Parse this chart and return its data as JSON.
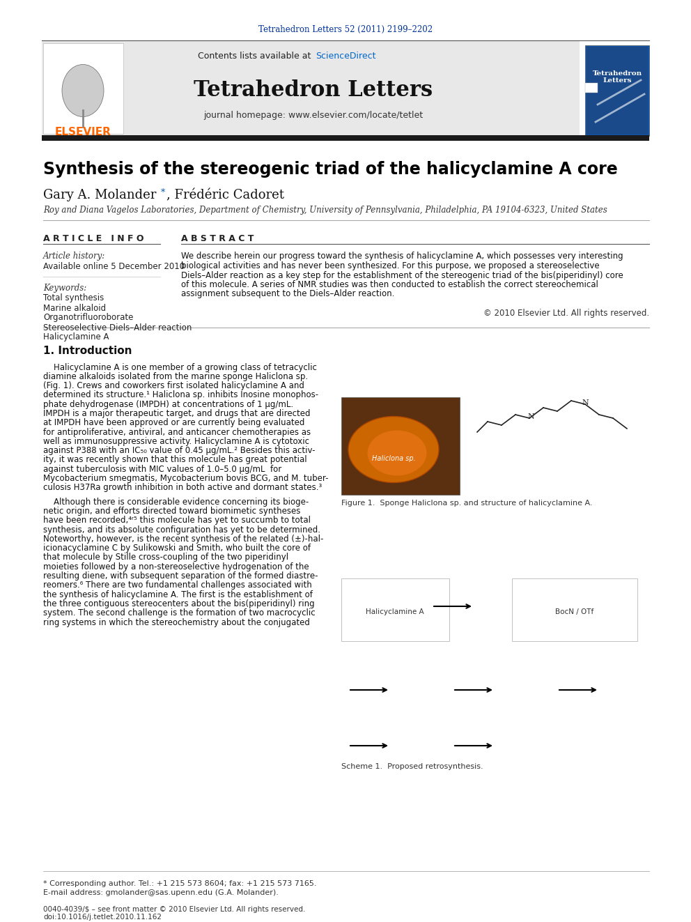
{
  "page_bg": "#ffffff",
  "top_journal_ref": "Tetrahedron Letters 52 (2011) 2199–2202",
  "top_journal_ref_color": "#003399",
  "header_bg": "#e8e8e8",
  "header_line1": "Contents lists available at ScienceDirect",
  "sciencedirect_color": "#0066cc",
  "journal_name": "Tetrahedron Letters",
  "journal_homepage": "journal homepage: www.elsevier.com/locate/tetlet",
  "thick_bar_color": "#1a1a1a",
  "article_title": "Synthesis of the stereogenic triad of the halicyclamine A core",
  "authors": "Gary A. Molander *, Frédéric Cadoret",
  "affiliation": "Roy and Diana Vagelos Laboratories, Department of Chemistry, University of Pennsylvania, Philadelphia, PA 19104-6323, United States",
  "article_info_header": "A R T I C L E   I N F O",
  "abstract_header": "A B S T R A C T",
  "article_history_label": "Article history:",
  "available_online": "Available online 5 December 2010",
  "keywords_label": "Keywords:",
  "keywords": [
    "Total synthesis",
    "Marine alkaloid",
    "Organotrifluoroborate",
    "Stereoselective Diels–Alder reaction",
    "Halicyclamine A"
  ],
  "abstract_text": "We describe herein our progress toward the synthesis of halicyclamine A, which possesses very interesting biological activities and has never been synthesized. For this purpose, we proposed a stereoselective Diels–Alder reaction as a key step for the establishment of the stereogenic triad of the bis(piperidinyl) core of this molecule. A series of NMR studies was then conducted to establish the correct stereochemical assignment subsequent to the Diels–Alder reaction.",
  "copyright": "© 2010 Elsevier Ltd. All rights reserved.",
  "section1_header": "1. Introduction",
  "figure1_caption": "Figure 1.  Sponge Haliclona sp. and structure of halicyclamine A.",
  "scheme1_caption": "Scheme 1.  Proposed retrosynthesis.",
  "footnote_star": "* Corresponding author. Tel.: +1 215 573 8604; fax: +1 215 573 7165.",
  "footnote_email": "E-mail address: gmolander@sas.upenn.edu (G.A. Molander).",
  "footer_issn": "0040-4039/$ – see front matter © 2010 Elsevier Ltd. All rights reserved.",
  "footer_doi": "doi:10.1016/j.tetlet.2010.11.162",
  "elsevier_orange": "#ff6600",
  "link_color": "#0055aa",
  "abstract_lines": [
    "We describe herein our progress toward the synthesis of halicyclamine A, which possesses very interesting",
    "biological activities and has never been synthesized. For this purpose, we proposed a stereoselective",
    "Diels–Alder reaction as a key step for the establishment of the stereogenic triad of the bis(piperidinyl) core",
    "of this molecule. A series of NMR studies was then conducted to establish the correct stereochemical",
    "assignment subsequent to the Diels–Alder reaction."
  ],
  "intro_lines1": [
    "    Halicyclamine A is one member of a growing class of tetracyclic",
    "diamine alkaloids isolated from the marine sponge Haliclona sp.",
    "(Fig. 1). Crews and coworkers first isolated halicyclamine A and",
    "determined its structure.¹ Haliclona sp. inhibits Inosine monophos-",
    "phate dehydrogenase (IMPDH) at concentrations of 1 μg/mL.",
    "IMPDH is a major therapeutic target, and drugs that are directed",
    "at IMPDH have been approved or are currently being evaluated",
    "for antiproliferative, antiviral, and anticancer chemotherapies as",
    "well as immunosuppressive activity. Halicyclamine A is cytotoxic",
    "against P388 with an IC₅₀ value of 0.45 μg/mL.² Besides this activ-",
    "ity, it was recently shown that this molecule has great potential",
    "against tuberculosis with MIC values of 1.0–5.0 μg/mL  for",
    "Mycobacterium smegmatis, Mycobacterium bovis BCG, and M. tuber-",
    "culosis H37Ra growth inhibition in both active and dormant states.³"
  ],
  "intro_lines2": [
    "    Although there is considerable evidence concerning its bioge-",
    "netic origin, and efforts directed toward biomimetic syntheses",
    "have been recorded,⁴ʳ⁵ this molecule has yet to succumb to total",
    "synthesis, and its absolute configuration has yet to be determined.",
    "Noteworthy, however, is the recent synthesis of the related (±)-hal-",
    "icionacyclamine C by Sulikowski and Smith, who built the core of",
    "that molecule by Stille cross-coupling of the two piperidinyl",
    "moieties followed by a non-stereoselective hydrogenation of the",
    "resulting diene, with subsequent separation of the formed diastre-",
    "reomers.⁶ There are two fundamental challenges associated with",
    "the synthesis of halicyclamine A. The first is the establishment of",
    "the three contiguous stereocenters about the bis(piperidinyl) ring",
    "system. The second challenge is the formation of two macrocyclic",
    "ring systems in which the stereochemistry about the conjugated"
  ]
}
